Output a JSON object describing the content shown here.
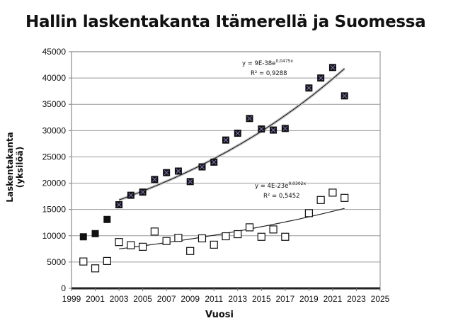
{
  "chart_data": {
    "type": "scatter",
    "title": "Hallin laskentakanta Itämerellä ja Suomessa",
    "xlabel": "Vuosi",
    "ylabel": "Laskentakanta (yksilöä)",
    "xlim": [
      1999,
      2025
    ],
    "ylim": [
      0,
      45000
    ],
    "xticks": [
      1999,
      2001,
      2003,
      2005,
      2007,
      2009,
      2011,
      2013,
      2015,
      2017,
      2019,
      2021,
      2023,
      2025
    ],
    "yticks": [
      0,
      5000,
      10000,
      15000,
      20000,
      25000,
      30000,
      35000,
      40000,
      45000
    ],
    "grid": true,
    "legend": "none",
    "series": [
      {
        "marker": "filled-square-with-x",
        "color": "#111111",
        "x": [
          2000,
          2001,
          2002,
          2003,
          2004,
          2005,
          2006,
          2007,
          2008,
          2009,
          2010,
          2011,
          2012,
          2013,
          2014,
          2015,
          2016,
          2017,
          2019,
          2020,
          2021,
          2022
        ],
        "y": [
          9800,
          10400,
          13100,
          15900,
          17700,
          18300,
          20700,
          22000,
          22300,
          20300,
          23100,
          24000,
          28200,
          29500,
          32300,
          30300,
          30100,
          30400,
          38100,
          40000,
          42000,
          36600
        ],
        "trendline": {
          "type": "exponential",
          "x_range": [
            2003,
            2022
          ],
          "y_at_ends": [
            16800,
            41800
          ],
          "equation": "y = 9E-38e",
          "exponent": "0,0475x",
          "r2": "R² = 0,9288"
        }
      },
      {
        "marker": "open-square",
        "color": "#111111",
        "x": [
          2000,
          2001,
          2002,
          2003,
          2004,
          2005,
          2006,
          2007,
          2008,
          2009,
          2010,
          2011,
          2012,
          2013,
          2014,
          2015,
          2016,
          2017,
          2019,
          2020,
          2021,
          2022
        ],
        "y": [
          5100,
          3800,
          5200,
          8800,
          8200,
          7900,
          10800,
          9000,
          9600,
          7100,
          9500,
          8300,
          9900,
          10300,
          11600,
          9800,
          11200,
          9800,
          14300,
          16800,
          18200,
          17200
        ],
        "trendline": {
          "type": "exponential",
          "x_range": [
            2003,
            2022
          ],
          "y_at_ends": [
            7500,
            15200
          ],
          "equation": "y = 4E-23e",
          "exponent": "0,0302x",
          "r2": "R² = 0,5452"
        }
      }
    ]
  }
}
